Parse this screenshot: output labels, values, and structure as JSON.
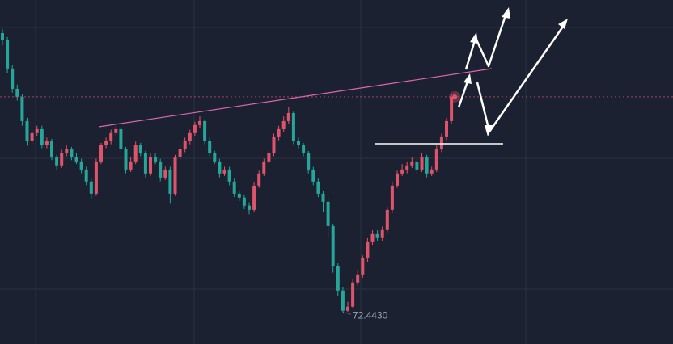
{
  "chart_data": {
    "type": "candlestick",
    "ylim": [
      72.2,
      74.8
    ],
    "up_color": "#e0546b",
    "down_color": "#26a69a",
    "low_label": {
      "value": 72.443,
      "label": "72.4430"
    },
    "open": [
      74.55,
      74.495,
      74.282,
      74.129,
      74.068,
      73.885,
      73.733,
      73.794,
      73.824,
      73.702,
      73.733,
      73.611,
      73.55,
      73.641,
      73.672,
      73.611,
      73.58,
      73.519,
      73.428,
      73.336,
      73.58,
      73.702,
      73.733,
      73.794,
      73.824,
      73.672,
      73.519,
      73.58,
      73.702,
      73.641,
      73.489,
      73.611,
      73.58,
      73.458,
      73.519,
      73.336,
      73.611,
      73.672,
      73.733,
      73.794,
      73.855,
      73.885,
      73.733,
      73.641,
      73.58,
      73.489,
      73.519,
      73.428,
      73.336,
      73.306,
      73.245,
      73.214,
      73.397,
      73.489,
      73.58,
      73.641,
      73.763,
      73.824,
      73.885,
      73.946,
      73.733,
      73.702,
      73.641,
      73.519,
      73.428,
      73.336,
      73.275,
      73.092,
      72.787,
      72.604,
      72.452,
      72.482,
      72.665,
      72.726,
      72.848,
      72.97,
      73.031,
      73.001,
      73.062,
      73.214,
      73.397,
      73.489,
      73.519,
      73.55,
      73.58,
      73.519,
      73.611,
      73.489,
      73.519,
      73.672,
      73.763,
      73.885
    ],
    "high": [
      74.58,
      74.52,
      74.31,
      74.16,
      74.09,
      73.91,
      73.82,
      73.85,
      73.85,
      73.76,
      73.75,
      73.63,
      73.67,
      73.7,
      73.69,
      73.64,
      73.6,
      73.54,
      73.45,
      73.6,
      73.72,
      73.76,
      73.82,
      73.85,
      73.84,
      73.69,
      73.61,
      73.73,
      73.72,
      73.66,
      73.64,
      73.64,
      73.6,
      73.54,
      73.54,
      73.63,
      73.7,
      73.76,
      73.82,
      73.88,
      73.92,
      73.9,
      73.76,
      73.66,
      73.6,
      73.54,
      73.54,
      73.45,
      73.36,
      73.33,
      73.27,
      73.42,
      73.51,
      73.6,
      73.66,
      73.79,
      73.85,
      73.92,
      73.99,
      73.96,
      73.76,
      73.72,
      73.66,
      73.54,
      73.45,
      73.36,
      73.3,
      73.11,
      72.81,
      72.63,
      72.52,
      72.69,
      72.76,
      72.87,
      73.0,
      73.06,
      73.06,
      73.09,
      73.24,
      73.42,
      73.51,
      73.56,
      73.58,
      73.61,
      73.6,
      73.64,
      73.63,
      73.54,
      73.7,
      73.79,
      73.91,
      74.09
    ],
    "low": [
      74.46,
      74.25,
      74.1,
      74.04,
      73.85,
      73.7,
      73.71,
      73.77,
      73.68,
      73.68,
      73.59,
      73.52,
      73.53,
      73.62,
      73.59,
      73.56,
      73.49,
      73.4,
      73.3,
      73.32,
      73.56,
      73.68,
      73.71,
      73.77,
      73.65,
      73.49,
      73.5,
      73.56,
      73.62,
      73.46,
      73.47,
      73.56,
      73.43,
      73.44,
      73.26,
      73.32,
      73.59,
      73.65,
      73.71,
      73.77,
      73.83,
      73.71,
      73.62,
      73.56,
      73.46,
      73.47,
      73.4,
      73.31,
      73.28,
      73.22,
      73.18,
      73.2,
      73.38,
      73.47,
      73.56,
      73.62,
      73.74,
      73.8,
      73.86,
      73.71,
      73.68,
      73.62,
      73.49,
      73.4,
      73.31,
      73.2,
      73.0,
      72.74,
      72.56,
      72.443,
      72.445,
      72.47,
      72.64,
      72.7,
      72.82,
      72.95,
      72.98,
      72.98,
      73.04,
      73.19,
      73.38,
      73.47,
      73.49,
      73.53,
      73.49,
      73.5,
      73.46,
      73.47,
      73.5,
      73.65,
      73.74,
      73.86
    ],
    "close": [
      74.495,
      74.282,
      74.129,
      74.068,
      73.885,
      73.733,
      73.794,
      73.824,
      73.702,
      73.733,
      73.611,
      73.55,
      73.641,
      73.672,
      73.611,
      73.58,
      73.519,
      73.428,
      73.336,
      73.58,
      73.702,
      73.733,
      73.794,
      73.824,
      73.672,
      73.519,
      73.58,
      73.702,
      73.641,
      73.489,
      73.611,
      73.58,
      73.458,
      73.519,
      73.336,
      73.611,
      73.672,
      73.733,
      73.794,
      73.855,
      73.885,
      73.733,
      73.641,
      73.58,
      73.489,
      73.519,
      73.428,
      73.336,
      73.306,
      73.245,
      73.214,
      73.397,
      73.489,
      73.58,
      73.641,
      73.763,
      73.824,
      73.885,
      73.946,
      73.733,
      73.702,
      73.641,
      73.519,
      73.428,
      73.336,
      73.275,
      73.092,
      72.787,
      72.604,
      72.452,
      72.482,
      72.665,
      72.726,
      72.848,
      72.97,
      73.031,
      73.001,
      73.062,
      73.214,
      73.397,
      73.489,
      73.519,
      73.55,
      73.58,
      73.519,
      73.611,
      73.489,
      73.519,
      73.672,
      73.763,
      73.885,
      74.068
    ]
  }
}
